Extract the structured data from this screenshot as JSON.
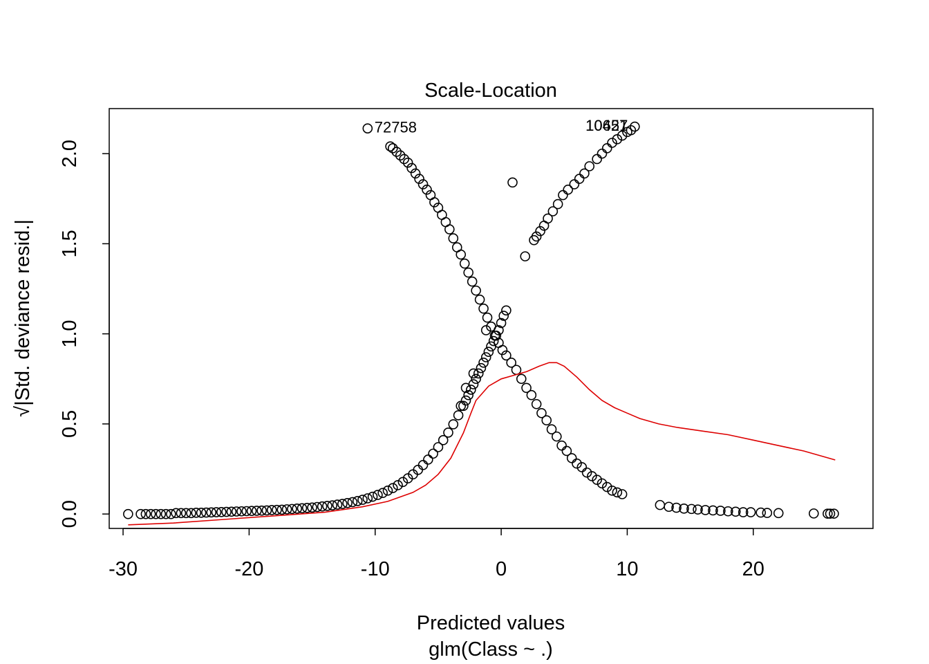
{
  "chart_data": {
    "type": "scatter",
    "title": "Scale-Location",
    "xlabel": "Predicted values",
    "subtitle": "glm(Class ~ .)",
    "ylabel_sqrt": "√",
    "ylabel": "|Std. deviance resid.|",
    "xlim": [
      -31.1,
      29.5
    ],
    "ylim": [
      -0.08,
      2.25
    ],
    "x_ticks": [
      -30,
      -20,
      -10,
      0,
      10,
      20
    ],
    "x_tick_labels": [
      "-30",
      "-20",
      "-10",
      "0",
      "10",
      "20"
    ],
    "y_ticks": [
      0.0,
      0.5,
      1.0,
      1.5,
      2.0
    ],
    "y_tick_labels": [
      "0.0",
      "0.5",
      "1.0",
      "1.5",
      "2.0"
    ],
    "point_colors": {
      "points": "#000000",
      "smooth": "#dd0000"
    },
    "labeled_points": [
      {
        "x": -10.6,
        "y": 2.14,
        "label": "72758"
      },
      {
        "x": 10.6,
        "y": 2.15,
        "label": "10427"
      },
      {
        "x": 10.6,
        "y": 2.15,
        "label": "10651"
      }
    ],
    "series": [
      {
        "points": [
          [
            -29.6,
            0.0
          ],
          [
            -28.6,
            0.0
          ],
          [
            -28.2,
            0.0
          ],
          [
            -27.8,
            0.0
          ],
          [
            -27.4,
            0.0
          ],
          [
            -27.0,
            0.0
          ],
          [
            -26.6,
            0.0
          ],
          [
            -26.2,
            0.0
          ],
          [
            -25.8,
            0.005
          ],
          [
            -25.4,
            0.005
          ],
          [
            -25.0,
            0.005
          ],
          [
            -24.6,
            0.005
          ],
          [
            -24.2,
            0.007
          ],
          [
            -23.8,
            0.007
          ],
          [
            -23.4,
            0.008
          ],
          [
            -23.0,
            0.009
          ],
          [
            -22.6,
            0.01
          ],
          [
            -22.2,
            0.011
          ],
          [
            -21.8,
            0.012
          ],
          [
            -21.4,
            0.013
          ],
          [
            -21.0,
            0.014
          ],
          [
            -20.6,
            0.015
          ],
          [
            -20.2,
            0.016
          ],
          [
            -19.8,
            0.017
          ],
          [
            -19.4,
            0.018
          ],
          [
            -19.0,
            0.019
          ],
          [
            -18.6,
            0.02
          ],
          [
            -18.2,
            0.022
          ],
          [
            -17.8,
            0.023
          ],
          [
            -17.4,
            0.024
          ],
          [
            -17.0,
            0.026
          ],
          [
            -16.6,
            0.028
          ],
          [
            -16.2,
            0.03
          ],
          [
            -15.8,
            0.032
          ],
          [
            -15.4,
            0.034
          ],
          [
            -15.0,
            0.036
          ],
          [
            -14.6,
            0.039
          ],
          [
            -14.2,
            0.042
          ],
          [
            -13.8,
            0.045
          ],
          [
            -13.4,
            0.048
          ],
          [
            -13.0,
            0.052
          ],
          [
            -12.6,
            0.056
          ],
          [
            -12.2,
            0.061
          ],
          [
            -11.8,
            0.066
          ],
          [
            -11.4,
            0.072
          ],
          [
            -11.0,
            0.079
          ],
          [
            -10.6,
            0.087
          ],
          [
            -10.2,
            0.096
          ],
          [
            -9.8,
            0.106
          ],
          [
            -9.4,
            0.117
          ],
          [
            -9.0,
            0.13
          ],
          [
            -8.6,
            0.144
          ],
          [
            -8.2,
            0.16
          ],
          [
            -7.8,
            0.178
          ],
          [
            -7.4,
            0.198
          ],
          [
            -7.0,
            0.22
          ],
          [
            -6.6,
            0.245
          ],
          [
            -6.2,
            0.272
          ],
          [
            -5.8,
            0.302
          ],
          [
            -5.4,
            0.335
          ],
          [
            -5.0,
            0.371
          ],
          [
            -4.6,
            0.41
          ],
          [
            -4.2,
            0.452
          ],
          [
            -3.8,
            0.498
          ],
          [
            -3.4,
            0.548
          ],
          [
            -3.0,
            0.6
          ],
          [
            -2.8,
            0.63
          ],
          [
            -2.6,
            0.66
          ],
          [
            -2.4,
            0.69
          ],
          [
            -2.2,
            0.72
          ],
          [
            -2.0,
            0.75
          ],
          [
            -1.8,
            0.78
          ],
          [
            -1.6,
            0.81
          ],
          [
            -1.4,
            0.84
          ],
          [
            -1.2,
            0.87
          ],
          [
            -1.0,
            0.9
          ],
          [
            -0.8,
            0.93
          ],
          [
            -0.6,
            0.96
          ],
          [
            -0.4,
            0.99
          ],
          [
            -0.2,
            1.02
          ],
          [
            0.0,
            1.06
          ],
          [
            0.2,
            1.1
          ],
          [
            0.4,
            1.13
          ],
          [
            -2.8,
            0.7
          ],
          [
            -2.2,
            0.78
          ],
          [
            -1.2,
            1.02
          ],
          [
            -3.2,
            0.6
          ],
          [
            0.9,
            1.84
          ],
          [
            1.9,
            1.43
          ],
          [
            2.6,
            1.52
          ],
          [
            2.8,
            1.54
          ],
          [
            3.1,
            1.57
          ],
          [
            3.4,
            1.6
          ],
          [
            3.7,
            1.64
          ],
          [
            4.1,
            1.68
          ],
          [
            4.5,
            1.72
          ],
          [
            4.9,
            1.77
          ],
          [
            5.3,
            1.8
          ],
          [
            5.8,
            1.83
          ],
          [
            6.2,
            1.86
          ],
          [
            6.6,
            1.89
          ],
          [
            7.0,
            1.93
          ],
          [
            7.6,
            1.97
          ],
          [
            8.0,
            2.0
          ],
          [
            8.4,
            2.03
          ],
          [
            8.8,
            2.06
          ],
          [
            9.2,
            2.08
          ],
          [
            9.6,
            2.1
          ],
          [
            10.0,
            2.12
          ],
          [
            10.3,
            2.13
          ],
          [
            10.6,
            2.15
          ],
          [
            -10.6,
            2.14
          ],
          [
            -8.8,
            2.04
          ],
          [
            -8.6,
            2.03
          ],
          [
            -8.3,
            2.01
          ],
          [
            -8.0,
            1.99
          ],
          [
            -7.7,
            1.97
          ],
          [
            -7.4,
            1.95
          ],
          [
            -7.1,
            1.92
          ],
          [
            -6.8,
            1.89
          ],
          [
            -6.5,
            1.86
          ],
          [
            -6.2,
            1.83
          ],
          [
            -5.9,
            1.8
          ],
          [
            -5.6,
            1.77
          ],
          [
            -5.3,
            1.73
          ],
          [
            -5.0,
            1.7
          ],
          [
            -4.7,
            1.66
          ],
          [
            -4.4,
            1.62
          ],
          [
            -4.1,
            1.58
          ],
          [
            -3.8,
            1.53
          ],
          [
            -3.5,
            1.48
          ],
          [
            -3.2,
            1.44
          ],
          [
            -2.9,
            1.39
          ],
          [
            -2.6,
            1.34
          ],
          [
            -2.3,
            1.29
          ],
          [
            -2.0,
            1.24
          ],
          [
            -1.7,
            1.19
          ],
          [
            -1.4,
            1.14
          ],
          [
            -1.1,
            1.09
          ],
          [
            -0.8,
            1.04
          ],
          [
            -0.5,
            0.99
          ],
          [
            -0.2,
            0.95
          ],
          [
            0.1,
            0.91
          ],
          [
            0.4,
            0.88
          ],
          [
            0.8,
            0.84
          ],
          [
            1.2,
            0.8
          ],
          [
            1.6,
            0.75
          ],
          [
            2.0,
            0.7
          ],
          [
            2.4,
            0.66
          ],
          [
            2.8,
            0.61
          ],
          [
            3.2,
            0.56
          ],
          [
            3.6,
            0.52
          ],
          [
            4.0,
            0.47
          ],
          [
            4.4,
            0.43
          ],
          [
            4.8,
            0.38
          ],
          [
            5.2,
            0.35
          ],
          [
            5.6,
            0.31
          ],
          [
            6.0,
            0.28
          ],
          [
            6.4,
            0.26
          ],
          [
            6.8,
            0.23
          ],
          [
            7.2,
            0.21
          ],
          [
            7.6,
            0.19
          ],
          [
            8.0,
            0.17
          ],
          [
            8.4,
            0.15
          ],
          [
            8.8,
            0.13
          ],
          [
            9.2,
            0.12
          ],
          [
            9.6,
            0.11
          ],
          [
            12.6,
            0.05
          ],
          [
            13.3,
            0.04
          ],
          [
            13.9,
            0.035
          ],
          [
            14.5,
            0.03
          ],
          [
            15.1,
            0.028
          ],
          [
            15.6,
            0.025
          ],
          [
            16.2,
            0.022
          ],
          [
            16.8,
            0.02
          ],
          [
            17.4,
            0.018
          ],
          [
            18.0,
            0.015
          ],
          [
            18.6,
            0.013
          ],
          [
            19.2,
            0.01
          ],
          [
            19.8,
            0.01
          ],
          [
            20.6,
            0.008
          ],
          [
            21.1,
            0.006
          ],
          [
            22.0,
            0.005
          ],
          [
            24.8,
            0.003
          ],
          [
            25.9,
            0.002
          ],
          [
            26.1,
            0.002
          ],
          [
            26.4,
            0.002
          ]
        ]
      },
      {
        "type": "line",
        "points": [
          [
            -29.6,
            -0.06
          ],
          [
            -26.0,
            -0.05
          ],
          [
            -22.0,
            -0.03
          ],
          [
            -18.0,
            -0.01
          ],
          [
            -14.0,
            0.01
          ],
          [
            -11.0,
            0.04
          ],
          [
            -9.0,
            0.07
          ],
          [
            -7.0,
            0.12
          ],
          [
            -6.0,
            0.16
          ],
          [
            -5.0,
            0.22
          ],
          [
            -4.0,
            0.31
          ],
          [
            -3.0,
            0.45
          ],
          [
            -2.4,
            0.56
          ],
          [
            -2.0,
            0.63
          ],
          [
            -1.0,
            0.71
          ],
          [
            0.0,
            0.75
          ],
          [
            1.0,
            0.77
          ],
          [
            2.0,
            0.79
          ],
          [
            3.0,
            0.82
          ],
          [
            3.8,
            0.84
          ],
          [
            4.4,
            0.84
          ],
          [
            5.0,
            0.82
          ],
          [
            6.0,
            0.76
          ],
          [
            7.0,
            0.69
          ],
          [
            8.0,
            0.63
          ],
          [
            9.0,
            0.59
          ],
          [
            10.0,
            0.56
          ],
          [
            11.0,
            0.53
          ],
          [
            12.5,
            0.5
          ],
          [
            14.0,
            0.48
          ],
          [
            16.0,
            0.46
          ],
          [
            18.0,
            0.44
          ],
          [
            20.0,
            0.41
          ],
          [
            22.0,
            0.38
          ],
          [
            24.0,
            0.35
          ],
          [
            26.5,
            0.3
          ]
        ]
      }
    ]
  }
}
